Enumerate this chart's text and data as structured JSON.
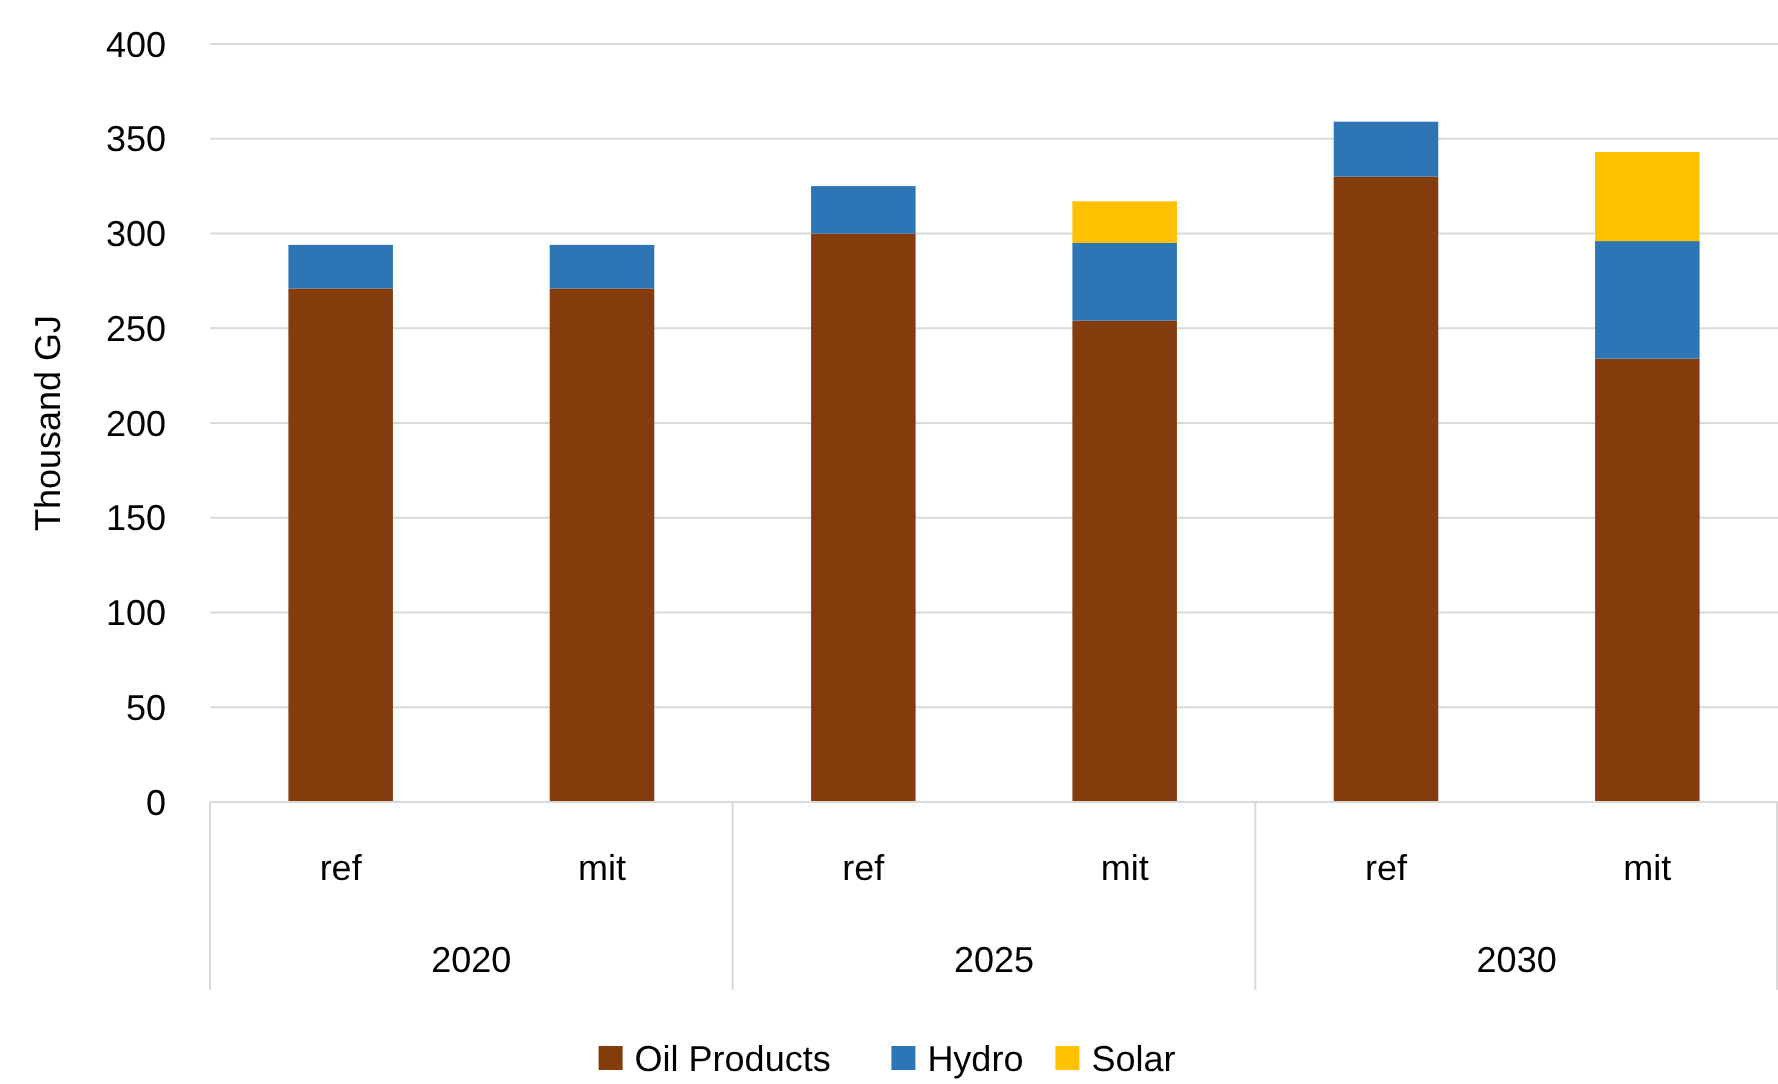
{
  "chart_data": {
    "type": "bar",
    "stacked": true,
    "ylabel": "Thousand GJ",
    "categories": [
      "ref",
      "mit",
      "ref",
      "mit",
      "ref",
      "mit"
    ],
    "annotations": [
      "2020",
      "2025",
      "2030"
    ],
    "series": [
      {
        "name": "Oil Products",
        "color": "#843c0c",
        "values": [
          271,
          271,
          300,
          254,
          330,
          234
        ]
      },
      {
        "name": "Hydro",
        "color": "#2e75b6",
        "values": [
          23,
          23,
          25,
          41,
          29,
          62
        ]
      },
      {
        "name": "Solar",
        "color": "#ffc000",
        "values": [
          null,
          null,
          null,
          22,
          null,
          47
        ]
      }
    ],
    "ylim": [
      0,
      400
    ],
    "yticks": [
      0,
      50,
      100,
      150,
      200,
      250,
      300,
      350,
      400
    ],
    "grid": "y",
    "legend": "bottom"
  }
}
